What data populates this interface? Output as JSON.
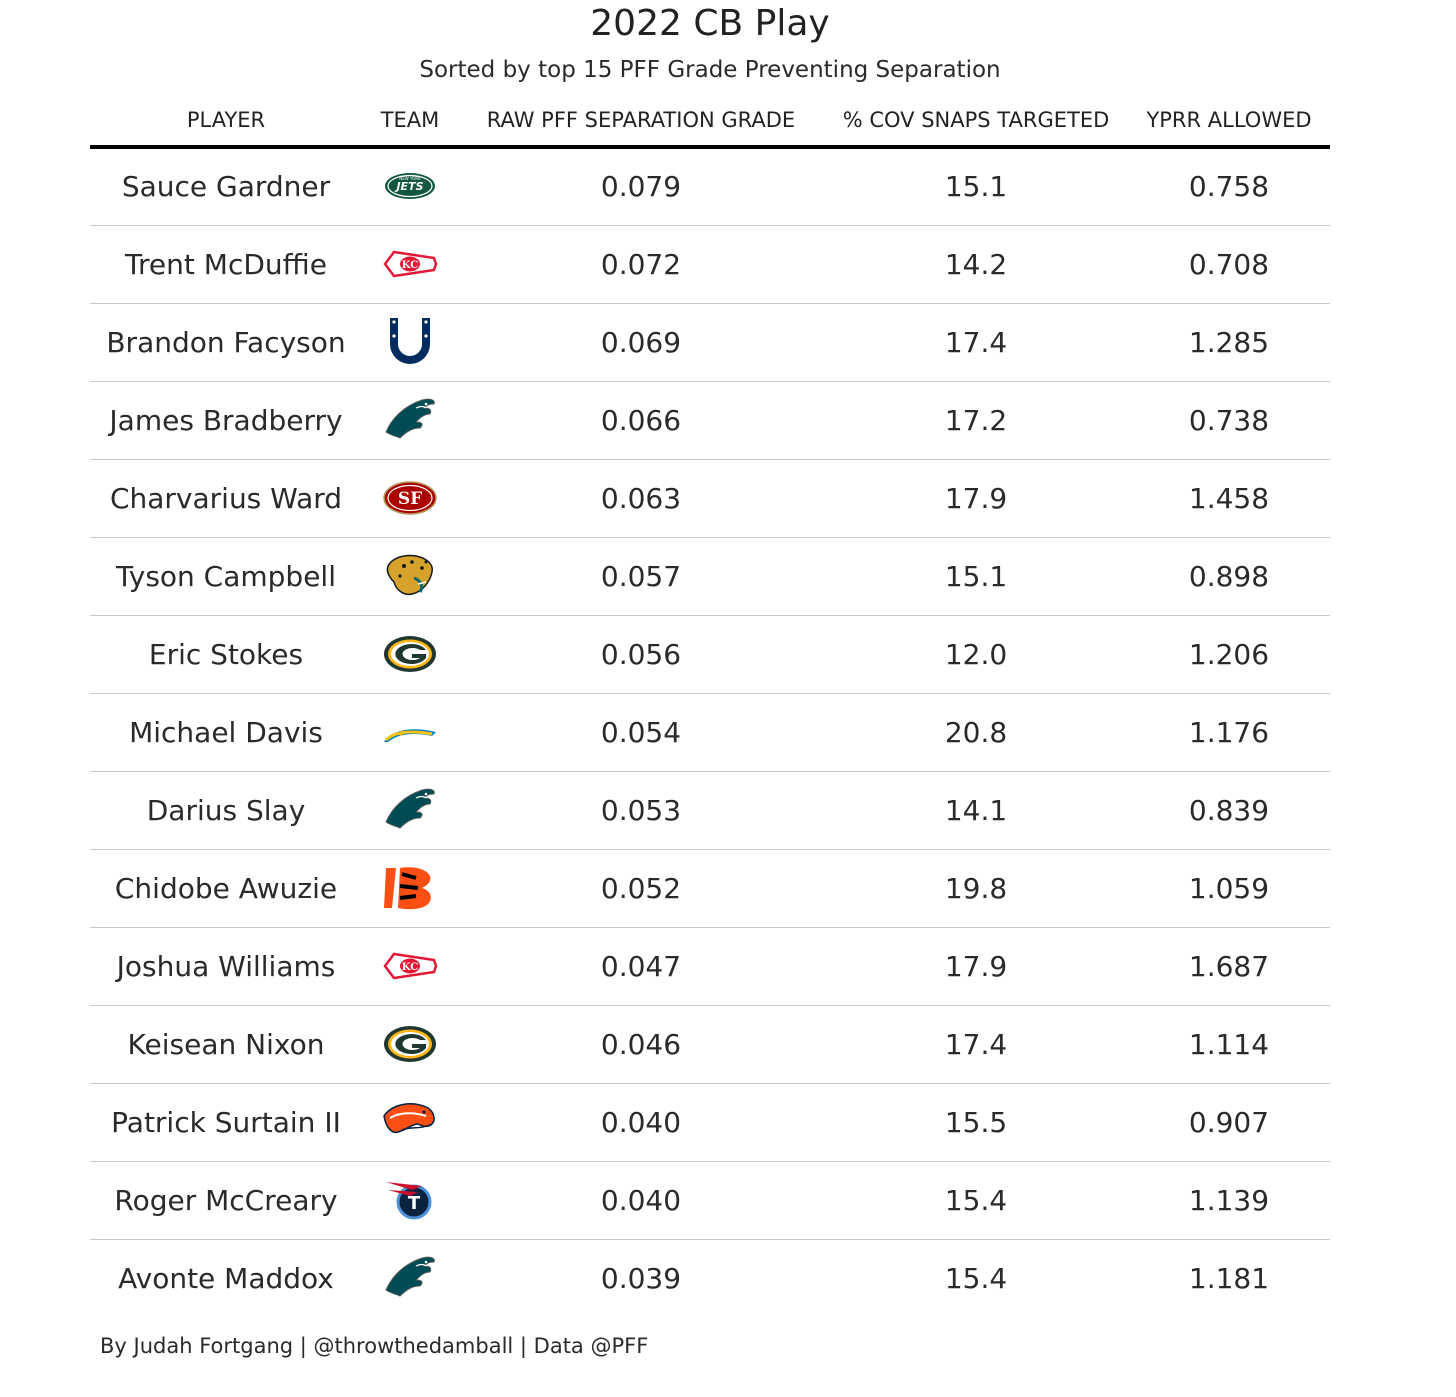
{
  "title": "2022 CB Play",
  "subtitle": "Sorted by top 15 PFF Grade Preventing Separation",
  "footer": "By Judah Fortgang | @throwthedamball | Data @PFF",
  "chart_data": {
    "type": "table",
    "columns": [
      "PLAYER",
      "TEAM",
      "RAW PFF SEPARATION GRADE",
      "% COV SNAPS TARGETED",
      "YPRR ALLOWED"
    ],
    "rows": [
      {
        "player": "Sauce Gardner",
        "team": "jets-logo",
        "grade": "0.079",
        "cov": "15.1",
        "yprr": "0.758"
      },
      {
        "player": "Trent McDuffie",
        "team": "chiefs-logo",
        "grade": "0.072",
        "cov": "14.2",
        "yprr": "0.708"
      },
      {
        "player": "Brandon Facyson",
        "team": "colts-logo",
        "grade": "0.069",
        "cov": "17.4",
        "yprr": "1.285"
      },
      {
        "player": "James Bradberry",
        "team": "eagles-logo",
        "grade": "0.066",
        "cov": "17.2",
        "yprr": "0.738"
      },
      {
        "player": "Charvarius Ward",
        "team": "49ers-logo",
        "grade": "0.063",
        "cov": "17.9",
        "yprr": "1.458"
      },
      {
        "player": "Tyson Campbell",
        "team": "jaguars-logo",
        "grade": "0.057",
        "cov": "15.1",
        "yprr": "0.898"
      },
      {
        "player": "Eric Stokes",
        "team": "packers-logo",
        "grade": "0.056",
        "cov": "12.0",
        "yprr": "1.206"
      },
      {
        "player": "Michael Davis",
        "team": "chargers-logo",
        "grade": "0.054",
        "cov": "20.8",
        "yprr": "1.176"
      },
      {
        "player": "Darius Slay",
        "team": "eagles-logo",
        "grade": "0.053",
        "cov": "14.1",
        "yprr": "0.839"
      },
      {
        "player": "Chidobe Awuzie",
        "team": "bengals-logo",
        "grade": "0.052",
        "cov": "19.8",
        "yprr": "1.059"
      },
      {
        "player": "Joshua Williams",
        "team": "chiefs-logo",
        "grade": "0.047",
        "cov": "17.9",
        "yprr": "1.687"
      },
      {
        "player": "Keisean Nixon",
        "team": "packers-logo",
        "grade": "0.046",
        "cov": "17.4",
        "yprr": "1.114"
      },
      {
        "player": "Patrick Surtain II",
        "team": "broncos-logo",
        "grade": "0.040",
        "cov": "15.5",
        "yprr": "0.907"
      },
      {
        "player": "Roger McCreary",
        "team": "titans-logo",
        "grade": "0.040",
        "cov": "15.4",
        "yprr": "1.139"
      },
      {
        "player": "Avonte Maddox",
        "team": "eagles-logo",
        "grade": "0.039",
        "cov": "15.4",
        "yprr": "1.181"
      }
    ]
  }
}
